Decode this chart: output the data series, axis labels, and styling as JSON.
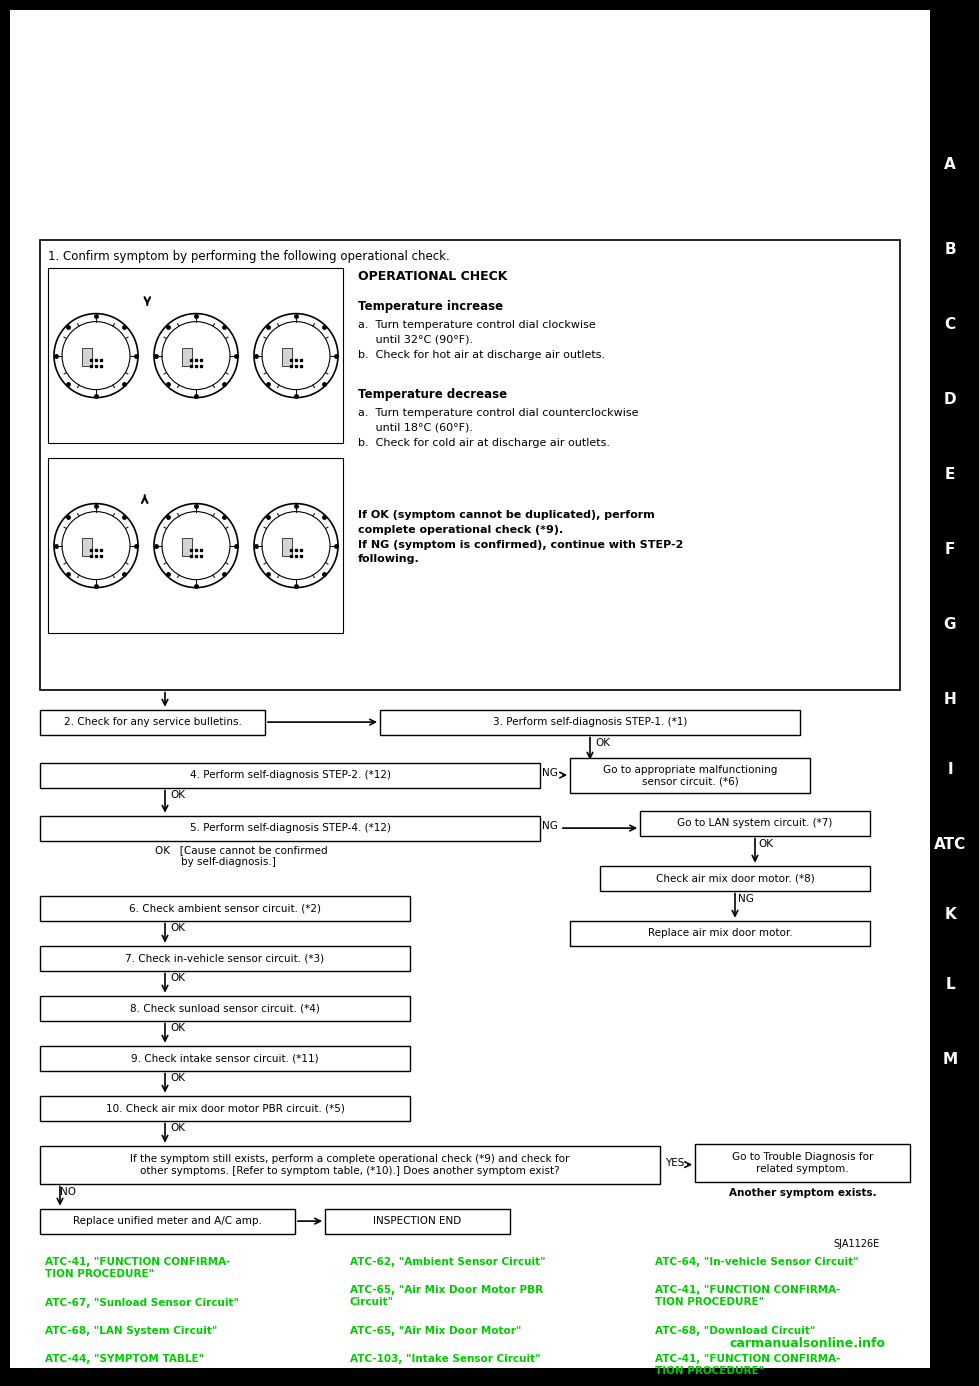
{
  "bg_color": "#000000",
  "page_bg": "#ffffff",
  "sidebar_letters": [
    "A",
    "B",
    "C",
    "D",
    "E",
    "F",
    "G",
    "H",
    "I",
    "ATC",
    "K",
    "L",
    "M"
  ],
  "sidebar_letter_y": [
    155,
    240,
    315,
    390,
    465,
    540,
    615,
    690,
    760,
    835,
    905,
    975,
    1050
  ],
  "step1_text": "1. Confirm symptom by performing the following operational check.",
  "op_check_title": "OPERATIONAL CHECK",
  "temp_increase_title": "Temperature increase",
  "temp_increase_a": "a.  Turn temperature control dial clockwise",
  "temp_increase_a2": "     until 32°C (90°F).",
  "temp_increase_b": "b.  Check for hot air at discharge air outlets.",
  "temp_decrease_title": "Temperature decrease",
  "temp_decrease_a": "a.  Turn temperature control dial counterclockwise",
  "temp_decrease_a2": "     until 18°C (60°F).",
  "temp_decrease_b": "b.  Check for cold air at discharge air outlets.",
  "if_ok_text": "If OK (symptom cannot be duplicated), perform\ncomplete operational check (*9).\nIf NG (symptom is confirmed), continue with STEP-2\nfollowing.",
  "step2_text": "2. Check for any service bulletins.",
  "step3_text": "3. Perform self-diagnosis STEP-1. (*1)",
  "step4_text": "4. Perform self-diagnosis STEP-2. (*12)",
  "step5_text": "5. Perform self-diagnosis STEP-4. (*12)",
  "step6_text": "6. Check ambient sensor circuit. (*2)",
  "step7_text": "7. Check in-vehicle sensor circuit. (*3)",
  "step8_text": "8. Check sunload sensor circuit. (*4)",
  "step9_text": "9. Check intake sensor circuit. (*11)",
  "step10_text": "10. Check air mix door motor PBR circuit. (*5)",
  "cause_text": "OK   [Cause cannot be confirmed\n        by self-diagnosis.]",
  "go_to_appropriate": "Go to appropriate malfunctioning\nsensor circuit. (*6)",
  "go_to_lan": "Go to LAN system circuit. (*7)",
  "check_air_mix": "Check air mix door motor. (*8)",
  "replace_air_mix": "Replace air mix door motor.",
  "final_text": "If the symptom still exists, perform a complete operational check (*9) and check for\nother symptoms. [Refer to symptom table, (*10).] Does another symptom exist?",
  "go_to_trouble": "Go to Trouble Diagnosis for\nrelated symptom.",
  "another_symptom": "Another symptom exists.",
  "replace_unified": "Replace unified meter and A/C amp.",
  "inspection_end": "INSPECTION END",
  "ok_label": "OK",
  "ng_label": "NG",
  "yes_label": "YES",
  "no_label": "NO",
  "sja_label": "SJA1126E",
  "green_links_col1": [
    "ATC-41, \"FUNCTION CONFIRMA-\nTION PROCEDURE\"",
    "ATC-67, \"Sunload Sensor Circuit\"",
    "ATC-68, \"LAN System Circuit\"",
    "ATC-44, \"SYMPTOM TABLE\""
  ],
  "green_links_col2": [
    "ATC-62, \"Ambient Sensor Circuit\"",
    "ATC-65, \"Air Mix Door Motor PBR\nCircuit\"",
    "ATC-65, \"Air Mix Door Motor\"",
    "ATC-103, \"Intake Sensor Circuit\""
  ],
  "green_links_col3": [
    "ATC-64, \"In-vehicle Sensor Circuit\"",
    "ATC-41, \"FUNCTION CONFIRMA-\nTION PROCEDURE\"",
    "ATC-68, \"Download Circuit\"",
    "ATC-41, \"FUNCTION CONFIRMA-\nTION PROCEDURE\""
  ]
}
